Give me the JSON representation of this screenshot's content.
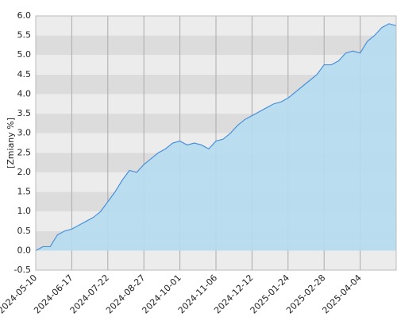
{
  "chart_data": {
    "type": "area",
    "y_label": "[Zmiany %]",
    "x": [
      0,
      5,
      10,
      15,
      20,
      25,
      30,
      35,
      40,
      45,
      50,
      55,
      60,
      65,
      70,
      75,
      80,
      85,
      90,
      95,
      100,
      105,
      110,
      115,
      120,
      125,
      130,
      135,
      140,
      145,
      150,
      155,
      160,
      165,
      170,
      175,
      180,
      185,
      190,
      195,
      200,
      205,
      210,
      215,
      220,
      225,
      230,
      235,
      240,
      245,
      250
    ],
    "values": [
      0.0,
      0.1,
      0.1,
      0.4,
      0.5,
      0.55,
      0.65,
      0.75,
      0.85,
      1.0,
      1.25,
      1.5,
      1.8,
      2.05,
      2.0,
      2.2,
      2.35,
      2.5,
      2.6,
      2.75,
      2.8,
      2.7,
      2.75,
      2.7,
      2.6,
      2.8,
      2.85,
      3.0,
      3.2,
      3.35,
      3.45,
      3.55,
      3.65,
      3.75,
      3.8,
      3.9,
      4.05,
      4.2,
      4.35,
      4.5,
      4.75,
      4.75,
      4.85,
      5.05,
      5.1,
      5.05,
      5.35,
      5.5,
      5.7,
      5.8,
      5.75
    ],
    "color": "#4a90d9",
    "fill": "#b5ddef",
    "xlim": [
      0,
      250
    ],
    "xticks": [
      {
        "value": 0,
        "label": "2024-05-10"
      },
      {
        "value": 25,
        "label": "2024-06-17"
      },
      {
        "value": 50,
        "label": "2024-07-22"
      },
      {
        "value": 75,
        "label": "2024-08-27"
      },
      {
        "value": 100,
        "label": "2024-10-01"
      },
      {
        "value": 125,
        "label": "2024-11-06"
      },
      {
        "value": 150,
        "label": "2024-12-12"
      },
      {
        "value": 175,
        "label": "2025-01-24"
      },
      {
        "value": 200,
        "label": "2025-02-28"
      },
      {
        "value": 225,
        "label": "2025-04-04"
      }
    ],
    "ylim": [
      -0.5,
      6.0
    ],
    "yticks": [
      {
        "value": -0.5,
        "label": "-0.5"
      },
      {
        "value": 0,
        "label": "0.0"
      },
      {
        "value": 0.5,
        "label": "0.5"
      },
      {
        "value": 1,
        "label": "1.0"
      },
      {
        "value": 1.5,
        "label": "1.5"
      },
      {
        "value": 2,
        "label": "2.0"
      },
      {
        "value": 2.5,
        "label": "2.5"
      },
      {
        "value": 3,
        "label": "3.0"
      },
      {
        "value": 3.5,
        "label": "3.5"
      },
      {
        "value": 4,
        "label": "4.0"
      },
      {
        "value": 4.5,
        "label": "4.5"
      },
      {
        "value": 5,
        "label": "5.0"
      },
      {
        "value": 5.5,
        "label": "5.5"
      },
      {
        "value": 6,
        "label": "6.0"
      }
    ]
  }
}
